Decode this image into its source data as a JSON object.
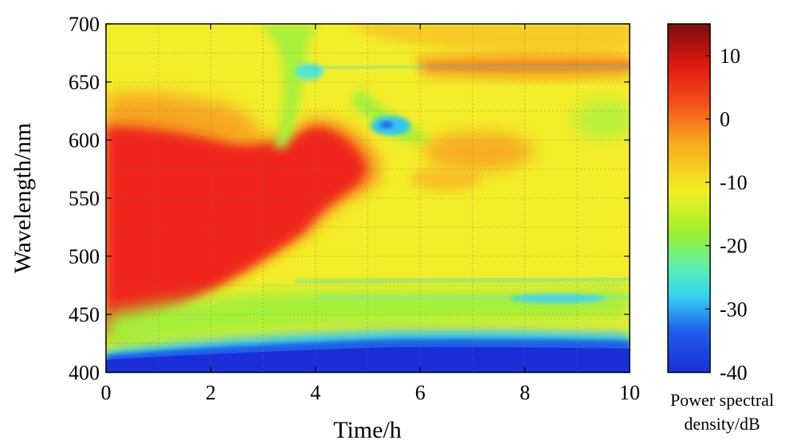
{
  "chart_data": {
    "type": "heatmap",
    "title": "",
    "xlabel": "Time/h",
    "ylabel": "Wavelength/nm",
    "xlim": [
      0,
      10
    ],
    "ylim": [
      400,
      700
    ],
    "x_ticks": [
      0,
      2,
      4,
      6,
      8,
      10
    ],
    "y_ticks": [
      400,
      450,
      500,
      550,
      600,
      650,
      700
    ],
    "grid": true,
    "colorbar": {
      "label_line1": "Power spectral",
      "label_line2": "density/dB",
      "range": [
        -40,
        15
      ],
      "ticks": [
        -40,
        -30,
        -20,
        -10,
        0,
        10
      ],
      "colormap": "jet"
    },
    "features": [
      {
        "name": "red-high-region",
        "time_start": 0,
        "time_end": 4.6,
        "wavelength_low": 430,
        "wavelength_high": 600,
        "level_db": 10
      },
      {
        "name": "blue-low-band",
        "time_start": 0,
        "time_end": 10,
        "wavelength_low": 400,
        "wavelength_high": 425,
        "level_db": -35
      },
      {
        "name": "cyan-dip-left",
        "time": 3.3,
        "wavelength": 620,
        "level_db": -12
      },
      {
        "name": "cyan-dip-right",
        "time": 5.6,
        "wavelength": 605,
        "level_db": -22
      },
      {
        "name": "orange-band-660nm",
        "time_start": 6,
        "time_end": 10,
        "wavelength": 662,
        "level_db": 0
      },
      {
        "name": "orange-patch-585nm",
        "time_start": 6,
        "time_end": 8.5,
        "wavelength": 580,
        "level_db": 0
      },
      {
        "name": "green-band-470nm",
        "time_start": 3.5,
        "time_end": 10,
        "wavelength": 470,
        "level_db": -12
      }
    ]
  }
}
